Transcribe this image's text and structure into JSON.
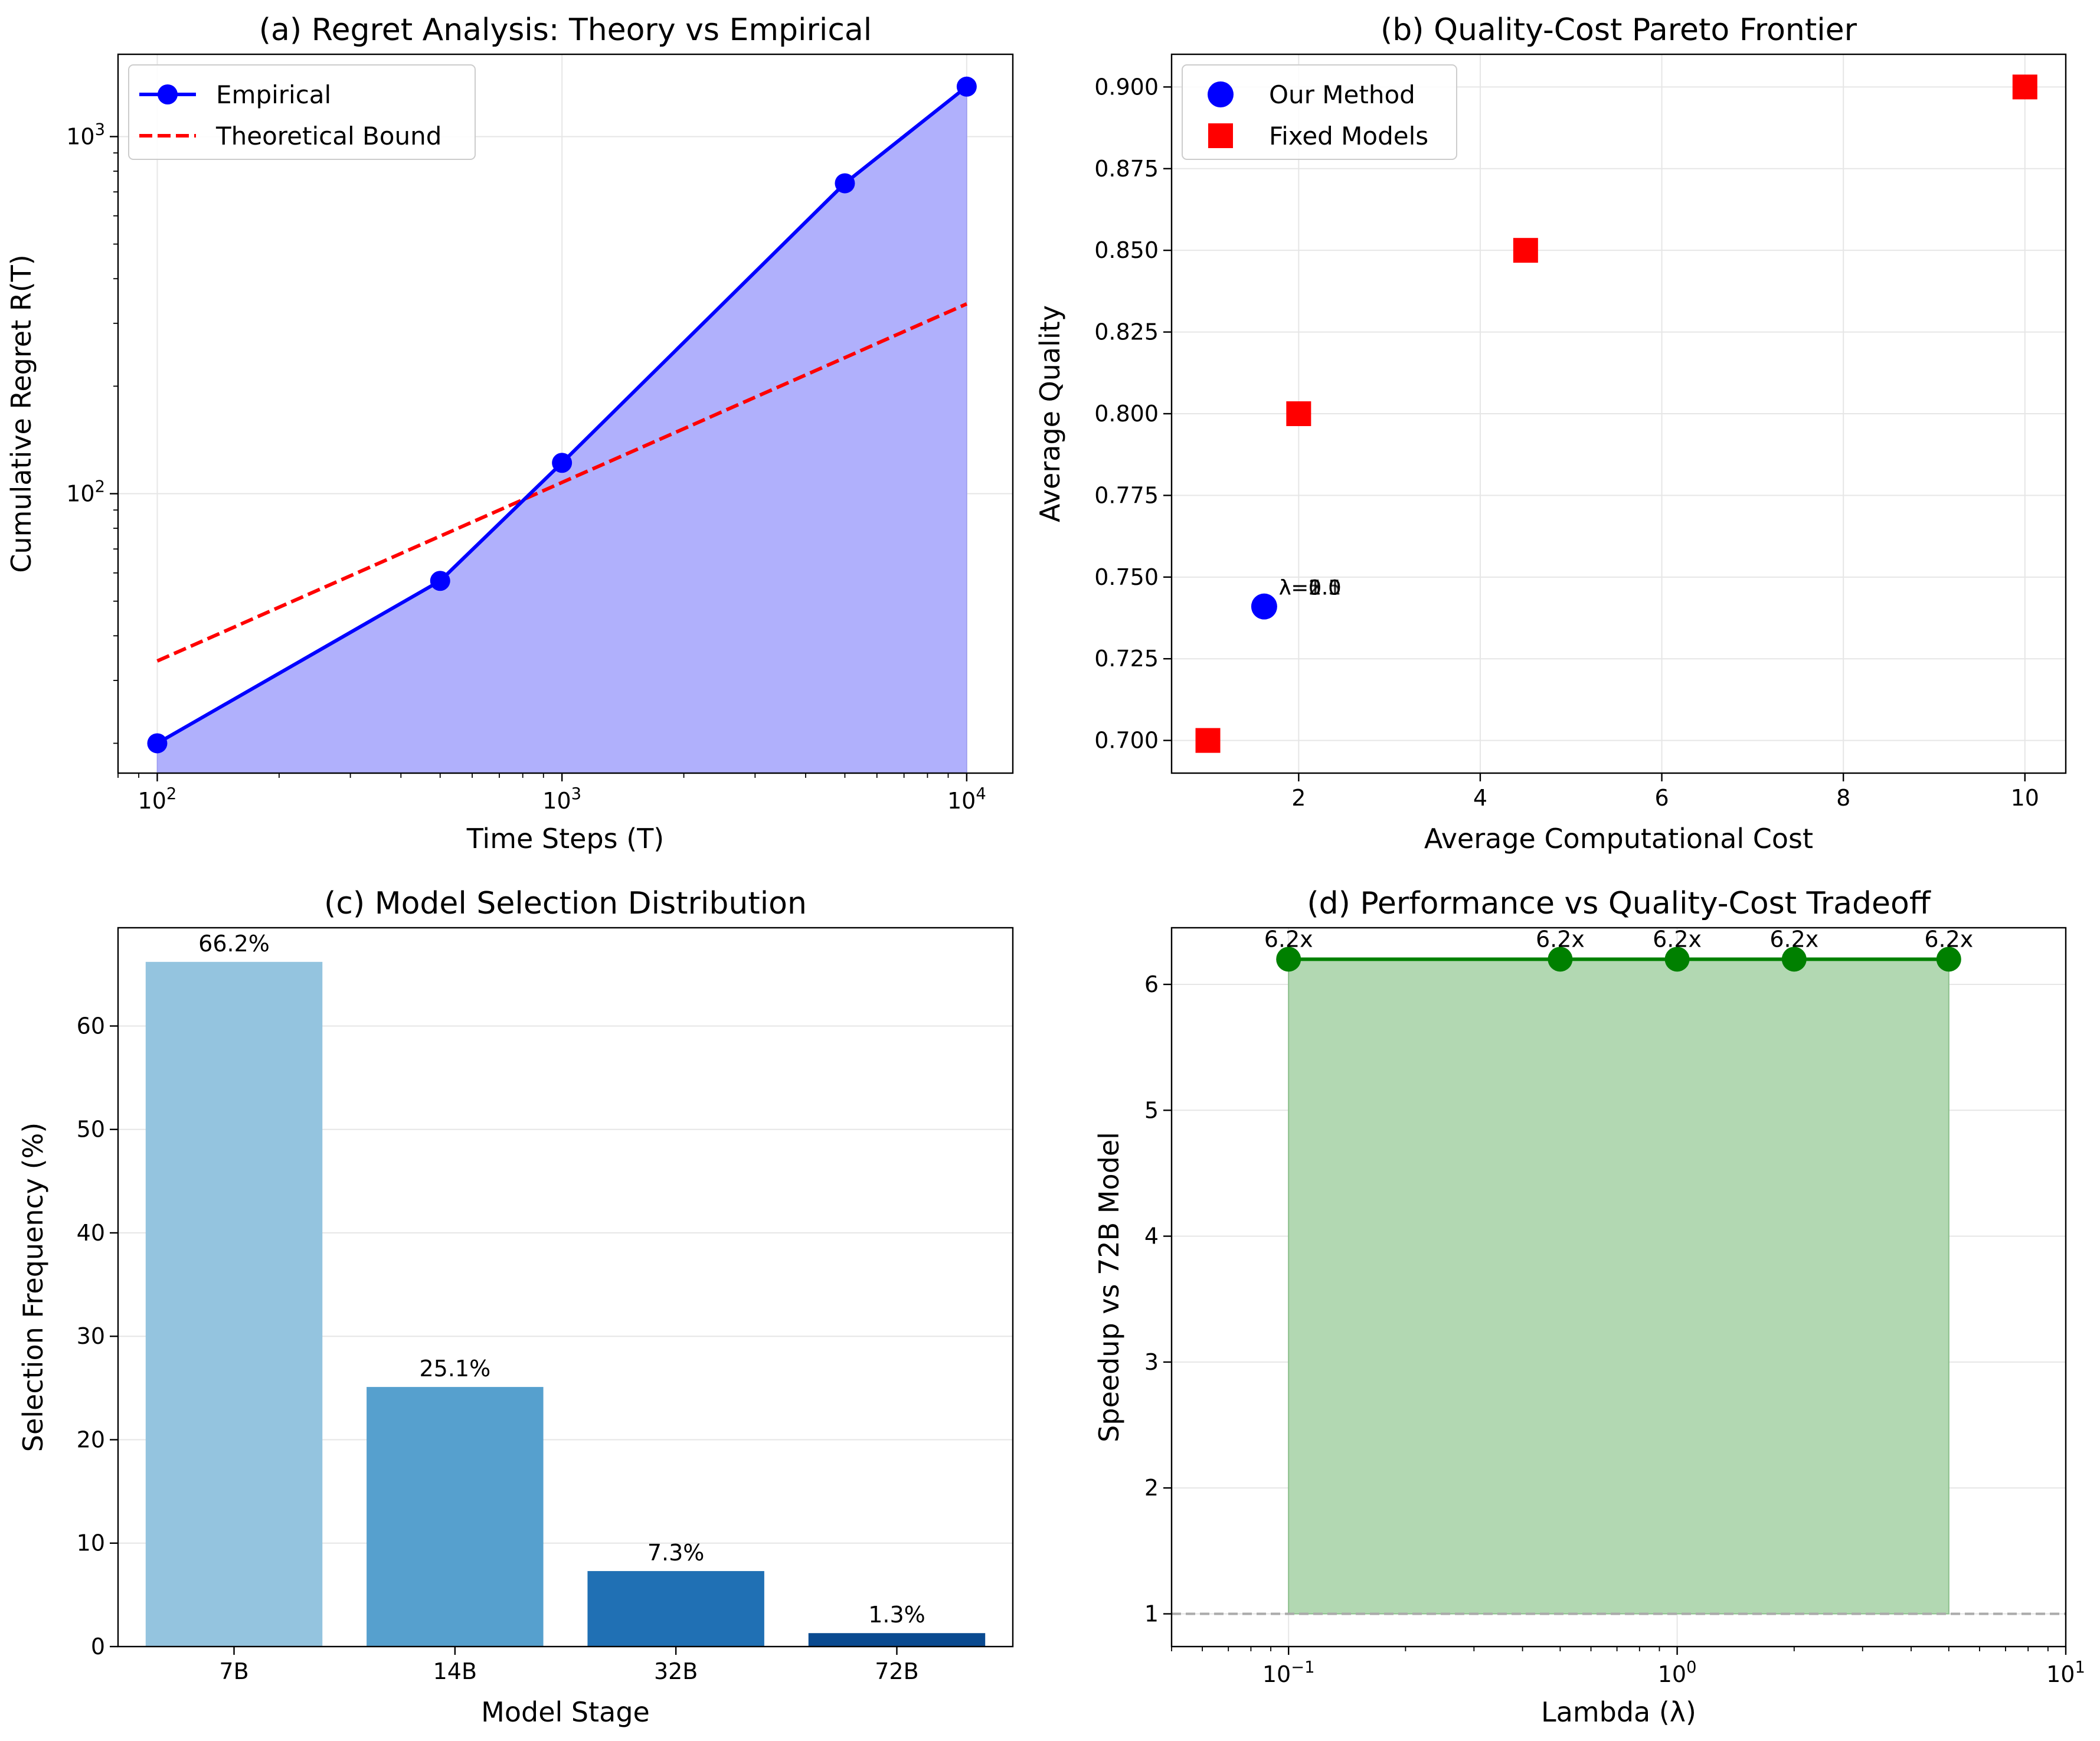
{
  "chart_data": [
    {
      "type": "line",
      "title": "(a) Regret Analysis: Theory vs Empirical",
      "xlabel": "Time Steps (T)",
      "ylabel": "Cumulative Regret R(T)",
      "xscale": "log",
      "yscale": "log",
      "xlim": [
        80,
        13000
      ],
      "ylim": [
        16.5,
        1700
      ],
      "x_ticks": [
        {
          "value": 100,
          "base": "10",
          "exp": "2"
        },
        {
          "value": 1000,
          "base": "10",
          "exp": "3"
        },
        {
          "value": 10000,
          "base": "10",
          "exp": "4"
        }
      ],
      "y_ticks": [
        {
          "value": 100,
          "base": "10",
          "exp": "2"
        },
        {
          "value": 1000,
          "base": "10",
          "exp": "3"
        }
      ],
      "grid": true,
      "legend_position": "top-left",
      "series": [
        {
          "name": "Empirical",
          "style": "solid-marker",
          "color": "#0000ff",
          "fill": true,
          "x": [
            100,
            500,
            1000,
            5000,
            10000
          ],
          "y": [
            20,
            57,
            122,
            740,
            1380
          ]
        },
        {
          "name": "Theoretical Bound",
          "style": "dashed",
          "color": "#ff0000",
          "x": [
            100,
            10000
          ],
          "y": [
            34,
            340
          ]
        }
      ]
    },
    {
      "type": "scatter",
      "title": "(b) Quality-Cost Pareto Frontier",
      "xlabel": "Average Computational Cost",
      "ylabel": "Average Quality",
      "xlim": [
        0.6,
        10.45
      ],
      "ylim": [
        0.69,
        0.91
      ],
      "x_ticks": [
        "2",
        "4",
        "6",
        "8",
        "10"
      ],
      "x_tick_values": [
        2,
        4,
        6,
        8,
        10
      ],
      "y_ticks": [
        "0.700",
        "0.725",
        "0.750",
        "0.775",
        "0.800",
        "0.825",
        "0.850",
        "0.875",
        "0.900"
      ],
      "y_tick_values": [
        0.7,
        0.725,
        0.75,
        0.775,
        0.8,
        0.825,
        0.85,
        0.875,
        0.9
      ],
      "grid": true,
      "legend_position": "top-left",
      "series": [
        {
          "name": "Our Method",
          "marker": "circle",
          "color": "#0000ff",
          "x": [
            1.62
          ],
          "y": [
            0.741
          ]
        },
        {
          "name": "Fixed Models",
          "marker": "square",
          "color": "#ff0000",
          "x": [
            1.0,
            2.0,
            4.5,
            10.0
          ],
          "y": [
            0.7,
            0.8,
            0.85,
            0.9
          ]
        }
      ],
      "annotations": [
        {
          "text": "λ=0.1",
          "x": 1.62,
          "y": 0.741
        },
        {
          "text": "λ=0.5",
          "x": 1.62,
          "y": 0.741
        },
        {
          "text": "λ=1.0",
          "x": 1.62,
          "y": 0.741
        },
        {
          "text": "λ=2.0",
          "x": 1.62,
          "y": 0.741
        },
        {
          "text": "λ=5.0",
          "x": 1.62,
          "y": 0.741
        }
      ]
    },
    {
      "type": "bar",
      "title": "(c) Model Selection Distribution",
      "xlabel": "Model Stage",
      "ylabel": "Selection Frequency (%)",
      "categories": [
        "7B",
        "14B",
        "32B",
        "72B"
      ],
      "values": [
        66.2,
        25.1,
        7.3,
        1.3
      ],
      "data_labels": [
        "66.2%",
        "25.1%",
        "7.3%",
        "1.3%"
      ],
      "colors": [
        "#94c4df",
        "#56a0ce",
        "#2070b4",
        "#0a4a90"
      ],
      "ylim": [
        0,
        69.5
      ],
      "y_ticks": [
        "0",
        "10",
        "20",
        "30",
        "40",
        "50",
        "60"
      ],
      "y_tick_values": [
        0,
        10,
        20,
        30,
        40,
        50,
        60
      ],
      "grid": true
    },
    {
      "type": "line",
      "title": "(d) Performance vs Quality-Cost Tradeoff",
      "xlabel": "Lambda (λ)",
      "ylabel": "Speedup vs 72B Model",
      "xscale": "log",
      "xlim": [
        0.05,
        10
      ],
      "ylim": [
        0.74,
        6.45
      ],
      "x_ticks": [
        {
          "value": 0.1,
          "base": "10",
          "exp": "−1"
        },
        {
          "value": 1,
          "base": "10",
          "exp": "0"
        },
        {
          "value": 10,
          "base": "10",
          "exp": "1"
        }
      ],
      "y_ticks": [
        "1",
        "2",
        "3",
        "4",
        "5",
        "6"
      ],
      "y_tick_values": [
        1,
        2,
        3,
        4,
        5,
        6
      ],
      "grid": true,
      "reference_line": 1,
      "series": [
        {
          "color": "#008000",
          "fill": true,
          "x": [
            0.1,
            0.5,
            1.0,
            2.0,
            5.0
          ],
          "y": [
            6.2,
            6.2,
            6.2,
            6.2,
            6.2
          ]
        }
      ],
      "data_labels": [
        "6.2x",
        "6.2x",
        "6.2x",
        "6.2x",
        "6.2x"
      ]
    }
  ]
}
